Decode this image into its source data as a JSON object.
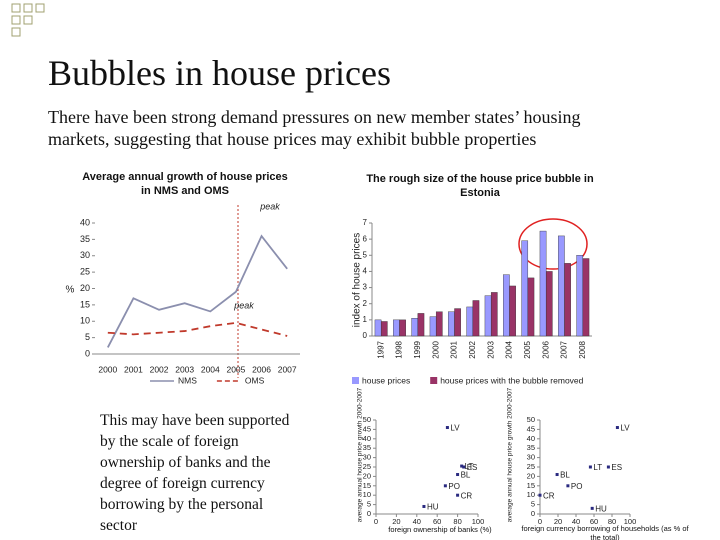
{
  "slide": {
    "title": "Bubbles in house prices",
    "text": "There have been strong demand pressures on new member states’ housing markets, suggesting that house prices may exhibit bubble properties",
    "side_text": "This may have been supported by the scale of foreign ownership of banks and the degree of foreign currency borrowing by the personal sector"
  },
  "chart_data": [
    {
      "type": "line",
      "title": "Average annual growth of house prices in NMS and OMS",
      "ylabel": "%",
      "categories": [
        "2000",
        "2001",
        "2002",
        "2003",
        "2004",
        "2005",
        "2006",
        "2007"
      ],
      "series": [
        {
          "name": "NMS",
          "color": "#8b8fae",
          "dash": false,
          "values": [
            2,
            17,
            13.5,
            15.5,
            13,
            19,
            36,
            26
          ]
        },
        {
          "name": "OMS",
          "color": "#c0392b",
          "dash": true,
          "values": [
            6.5,
            6,
            6.5,
            7,
            8.5,
            9.5,
            7.5,
            5.5
          ]
        }
      ],
      "ylim": [
        0,
        40
      ],
      "yticks": [
        0,
        5,
        10,
        15,
        20,
        25,
        30,
        35,
        40
      ],
      "annotations": [
        "peak",
        "peak"
      ]
    },
    {
      "type": "bar",
      "title": "The rough size of the house price bubble in Estonia",
      "ylabel": "index of house prices",
      "categories": [
        "1997",
        "1998",
        "1999",
        "2000",
        "2001",
        "2002",
        "2003",
        "2004",
        "2005",
        "2006",
        "2007",
        "2008"
      ],
      "series": [
        {
          "name": "house prices",
          "color": "#9999ff",
          "values": [
            1,
            1,
            1.1,
            1.2,
            1.5,
            1.8,
            2.5,
            3.8,
            5.9,
            6.5,
            6.2,
            5
          ]
        },
        {
          "name": "house prices with the bubble removed",
          "color": "#993366",
          "values": [
            0.9,
            1,
            1.4,
            1.5,
            1.7,
            2.2,
            2.7,
            3.1,
            3.6,
            4,
            4.5,
            4.8
          ]
        }
      ],
      "ylim": [
        0,
        7
      ],
      "yticks": [
        0,
        1,
        2,
        3,
        4,
        5,
        6,
        7
      ]
    },
    {
      "type": "scatter",
      "ylabel": "average annual house price growth 2000-2007",
      "xlabel": "foreign ownership of banks (%)",
      "labels": [
        "LV",
        "LT",
        "ES",
        "BL",
        "PO",
        "CR",
        "HU"
      ],
      "x": [
        70,
        84,
        86,
        80,
        68,
        80,
        47
      ],
      "values": [
        46,
        25.5,
        25,
        21,
        15,
        10,
        4
      ],
      "color": "#2a2a80",
      "xlim": [
        0,
        100
      ],
      "xticks": [
        0,
        20,
        40,
        60,
        80,
        100
      ],
      "ylim": [
        0,
        50
      ],
      "yticks": [
        0,
        5,
        10,
        15,
        20,
        25,
        30,
        35,
        40,
        45,
        50
      ]
    },
    {
      "type": "scatter",
      "ylabel": "average annual house price growth 2000-2007",
      "xlabel": "foreign currency borrowing of households (as % of the total)",
      "labels": [
        "LV",
        "LT",
        "ES",
        "BL",
        "PO",
        "CR",
        "HU"
      ],
      "x": [
        86,
        56,
        76,
        19,
        31,
        0,
        58
      ],
      "values": [
        46,
        25,
        25,
        21,
        15,
        10,
        3
      ],
      "color": "#2a2a80",
      "xlim": [
        0,
        100
      ],
      "xticks": [
        0,
        20,
        40,
        60,
        80,
        100
      ],
      "ylim": [
        0,
        50
      ],
      "yticks": [
        0,
        5,
        10,
        15,
        20,
        25,
        30,
        35,
        40,
        45,
        50
      ]
    }
  ]
}
